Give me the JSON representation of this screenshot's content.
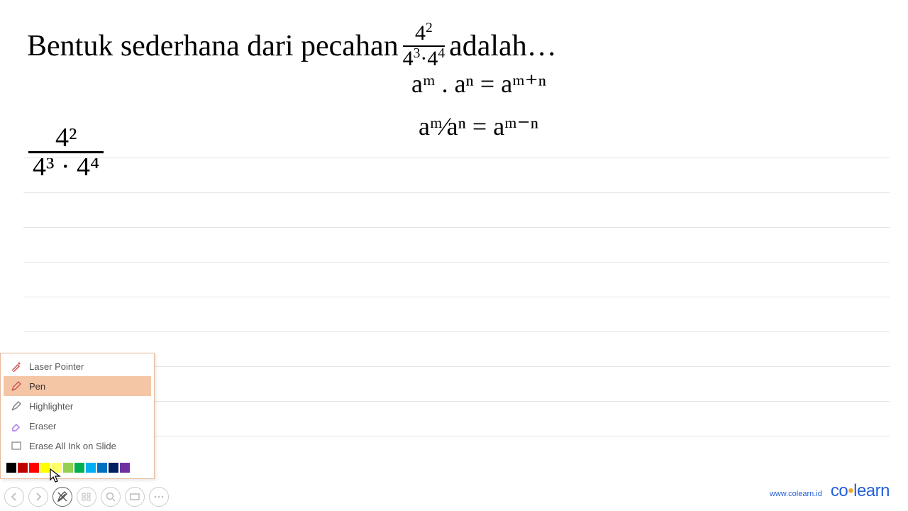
{
  "question": {
    "before": "Bentuk sederhana dari pecahan ",
    "after": " adalah…",
    "fraction": {
      "num": "4",
      "num_exp": "2",
      "den": "4",
      "den_exp1": "3",
      "den_mid": "·4",
      "den_exp2": "4"
    }
  },
  "handwriting": {
    "rule1": "aᵐ . aⁿ = aᵐ⁺ⁿ",
    "rule2": "aᵐ⁄aⁿ = aᵐ⁻ⁿ",
    "working_num": "4²",
    "working_den": "4³ · 4⁴"
  },
  "pen_menu": {
    "items": [
      {
        "label": "Laser Pointer",
        "selected": false
      },
      {
        "label": "Pen",
        "selected": true
      },
      {
        "label": "Highlighter",
        "selected": false
      },
      {
        "label": "Eraser",
        "selected": false
      },
      {
        "label": "Erase All Ink on Slide",
        "selected": false
      }
    ],
    "colors": [
      "#000000",
      "#c00000",
      "#ff0000",
      "#ffff00",
      "#ffff66",
      "#92d050",
      "#00b050",
      "#00b0f0",
      "#0070c0",
      "#002060",
      "#7030a0"
    ]
  },
  "controls": {
    "prev": "‹",
    "next": "›",
    "pen": "✎",
    "view": "▦",
    "zoom": "⍟",
    "present": "▭",
    "more": "⋯"
  },
  "footer": {
    "url": "www.colearn.id",
    "logo_co": "co",
    "logo_dot": "•",
    "logo_learn": "learn"
  },
  "styling": {
    "page_bg": "#ffffff",
    "rule_color": "#e5e5e5",
    "menu_border": "#e6b999",
    "menu_selected_bg": "#f5c6a5",
    "brand_color": "#2560d8",
    "brand_accent": "#f5a623",
    "question_fontsize": 42,
    "handwriting_fontsize": 36
  }
}
